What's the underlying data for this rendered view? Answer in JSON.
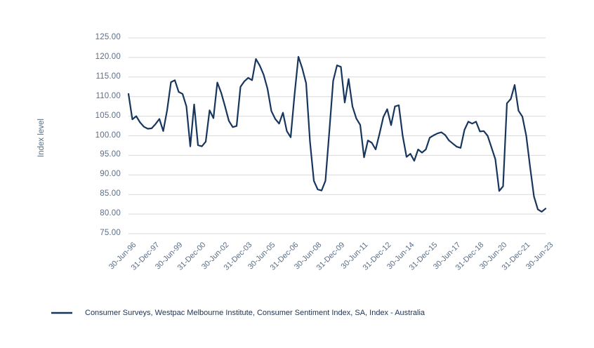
{
  "y_axis": {
    "title": "Index level",
    "tick_labels": [
      "125.00",
      "120.00",
      "115.00",
      "110.00",
      "105.00",
      "100.00",
      "95.00",
      "90.00",
      "85.00",
      "80.00",
      "75.00"
    ]
  },
  "legend": {
    "label": "Consumer Surveys, Westpac Melbourne Institute, Consumer Sentiment Index, SA, Index - Australia"
  },
  "colors": {
    "line": "#17365d",
    "grid": "#d9d9d9",
    "tick_text": "#5b6e86",
    "legend_text": "#1d3251",
    "background": "#ffffff"
  },
  "chart_data": {
    "type": "line",
    "title": "",
    "xlabel": "",
    "ylabel": "Index level",
    "ylim": [
      75,
      125
    ],
    "y_ticks": [
      125,
      120,
      115,
      110,
      105,
      100,
      95,
      90,
      85,
      80,
      75
    ],
    "grid": "horizontal",
    "legend_position": "bottom-left",
    "frequency": "quarterly",
    "x_tick_every": 6,
    "x_tick_labels": [
      "30-Jun-96",
      "31-Dec-97",
      "30-Jun-99",
      "31-Dec-00",
      "30-Jun-02",
      "31-Dec-03",
      "30-Jun-05",
      "31-Dec-06",
      "30-Jun-08",
      "31-Dec-09",
      "30-Jun-11",
      "31-Dec-12",
      "30-Jun-14",
      "31-Dec-15",
      "30-Jun-17",
      "31-Dec-18",
      "30-Jun-20",
      "31-Dec-21",
      "30-Jun-23"
    ],
    "series": [
      {
        "name": "Consumer Surveys, Westpac Melbourne Institute, Consumer Sentiment Index, SA, Index - Australia",
        "color": "#17365d",
        "values": [
          110.7,
          104.2,
          105.0,
          103.4,
          102.3,
          101.8,
          101.9,
          103.0,
          104.3,
          101.2,
          106.5,
          113.7,
          114.2,
          111.2,
          110.7,
          107.5,
          97.3,
          108.0,
          97.6,
          97.3,
          98.5,
          106.5,
          104.5,
          113.6,
          111.0,
          107.5,
          103.8,
          102.2,
          102.5,
          112.5,
          113.9,
          114.8,
          114.2,
          119.6,
          117.9,
          115.6,
          112.0,
          106.3,
          104.3,
          103.1,
          105.9,
          101.2,
          99.6,
          110.5,
          120.2,
          117.2,
          113.4,
          98.5,
          88.5,
          86.3,
          86.0,
          88.5,
          101.0,
          114.0,
          118.0,
          117.6,
          108.5,
          114.5,
          107.5,
          104.4,
          102.8,
          94.5,
          98.8,
          98.2,
          96.5,
          100.5,
          104.8,
          106.8,
          102.7,
          107.5,
          107.8,
          100.0,
          94.6,
          95.4,
          93.6,
          96.5,
          95.7,
          96.5,
          99.5,
          100.1,
          100.6,
          100.9,
          100.2,
          98.8,
          98.0,
          97.2,
          96.9,
          101.5,
          103.6,
          103.1,
          103.6,
          101.1,
          101.2,
          100.0,
          97.0,
          94.0,
          85.9,
          87.1,
          108.3,
          109.4,
          113.0,
          106.4,
          104.9,
          100.0,
          92.0,
          84.5,
          81.2,
          80.6,
          81.4
        ]
      }
    ]
  }
}
